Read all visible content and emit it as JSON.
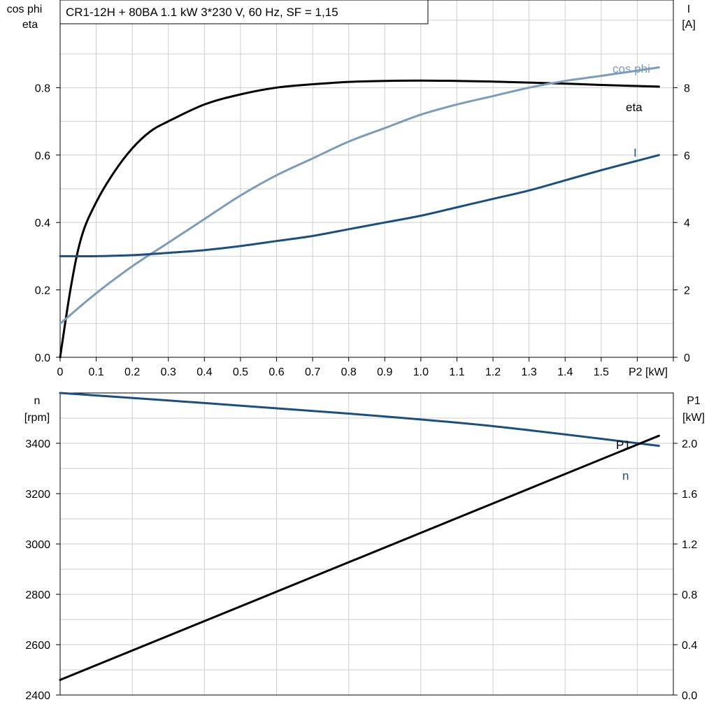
{
  "chart_data": [
    {
      "type": "line",
      "title": "CR1-12H + 80BA   1.1 kW   3*230 V, 60 Hz, SF = 1,15",
      "y_left_label": [
        "cos phi",
        "eta"
      ],
      "y_right_label": [
        "I",
        "[A]"
      ],
      "x_label": "P2 [kW]",
      "xlim": [
        0,
        1.7
      ],
      "x_ticks": [
        "0",
        "0.1",
        "0.2",
        "0.3",
        "0.4",
        "0.5",
        "0.6",
        "0.7",
        "0.8",
        "0.9",
        "1.0",
        "1.1",
        "1.2",
        "1.3",
        "1.4",
        "1.5"
      ],
      "y_left_ylim": [
        0,
        1.06
      ],
      "y_left_ticks": [
        "0.0",
        "0.2",
        "0.4",
        "0.6",
        "0.8"
      ],
      "y_right_ylim": [
        0,
        10.6
      ],
      "y_right_ticks": [
        "0",
        "2",
        "4",
        "6",
        "8"
      ],
      "grid": true,
      "series": [
        {
          "name": "eta",
          "axis": "left",
          "color": "#000000",
          "x": [
            0,
            0.03,
            0.06,
            0.1,
            0.15,
            0.2,
            0.25,
            0.3,
            0.4,
            0.5,
            0.6,
            0.7,
            0.8,
            0.9,
            1.0,
            1.1,
            1.2,
            1.3,
            1.4,
            1.5,
            1.66
          ],
          "y": [
            0,
            0.21,
            0.36,
            0.46,
            0.55,
            0.62,
            0.67,
            0.7,
            0.75,
            0.78,
            0.8,
            0.81,
            0.817,
            0.82,
            0.821,
            0.82,
            0.818,
            0.815,
            0.812,
            0.808,
            0.803
          ]
        },
        {
          "name": "cos phi",
          "axis": "left",
          "color": "#7b9cbb",
          "x": [
            0,
            0.1,
            0.2,
            0.3,
            0.4,
            0.5,
            0.6,
            0.7,
            0.8,
            0.9,
            1.0,
            1.1,
            1.2,
            1.3,
            1.4,
            1.5,
            1.66
          ],
          "y": [
            0.1,
            0.19,
            0.27,
            0.34,
            0.41,
            0.48,
            0.54,
            0.59,
            0.64,
            0.68,
            0.72,
            0.75,
            0.775,
            0.8,
            0.82,
            0.835,
            0.86
          ]
        },
        {
          "name": "I",
          "axis": "right",
          "color": "#1b4f82",
          "x": [
            0,
            0.1,
            0.2,
            0.3,
            0.4,
            0.5,
            0.6,
            0.7,
            0.8,
            0.9,
            1.0,
            1.1,
            1.2,
            1.3,
            1.4,
            1.5,
            1.66
          ],
          "y": [
            3.0,
            3.0,
            3.03,
            3.1,
            3.18,
            3.3,
            3.45,
            3.6,
            3.8,
            4.0,
            4.2,
            4.45,
            4.7,
            4.95,
            5.25,
            5.55,
            6.0
          ]
        }
      ]
    },
    {
      "type": "line",
      "y_left_label": [
        "n",
        "[rpm]"
      ],
      "y_right_label": [
        "P1",
        "[kW]"
      ],
      "xlim": [
        0,
        1.7
      ],
      "y_left_ylim": [
        2400,
        3600
      ],
      "y_left_ticks": [
        "2400",
        "2600",
        "2800",
        "3000",
        "3200",
        "3400"
      ],
      "y_right_ylim": [
        0,
        2.4
      ],
      "y_right_ticks": [
        "0.0",
        "0.4",
        "0.8",
        "1.2",
        "1.6",
        "2.0"
      ],
      "grid": true,
      "series": [
        {
          "name": "n",
          "axis": "left",
          "color": "#1b4f82",
          "x": [
            0,
            0.4,
            0.8,
            1.2,
            1.66
          ],
          "y": [
            3600,
            3560,
            3518,
            3468,
            3390
          ]
        },
        {
          "name": "P1",
          "axis": "right",
          "color": "#000000",
          "x": [
            0,
            1.66
          ],
          "y": [
            0.12,
            2.06
          ]
        }
      ]
    }
  ]
}
